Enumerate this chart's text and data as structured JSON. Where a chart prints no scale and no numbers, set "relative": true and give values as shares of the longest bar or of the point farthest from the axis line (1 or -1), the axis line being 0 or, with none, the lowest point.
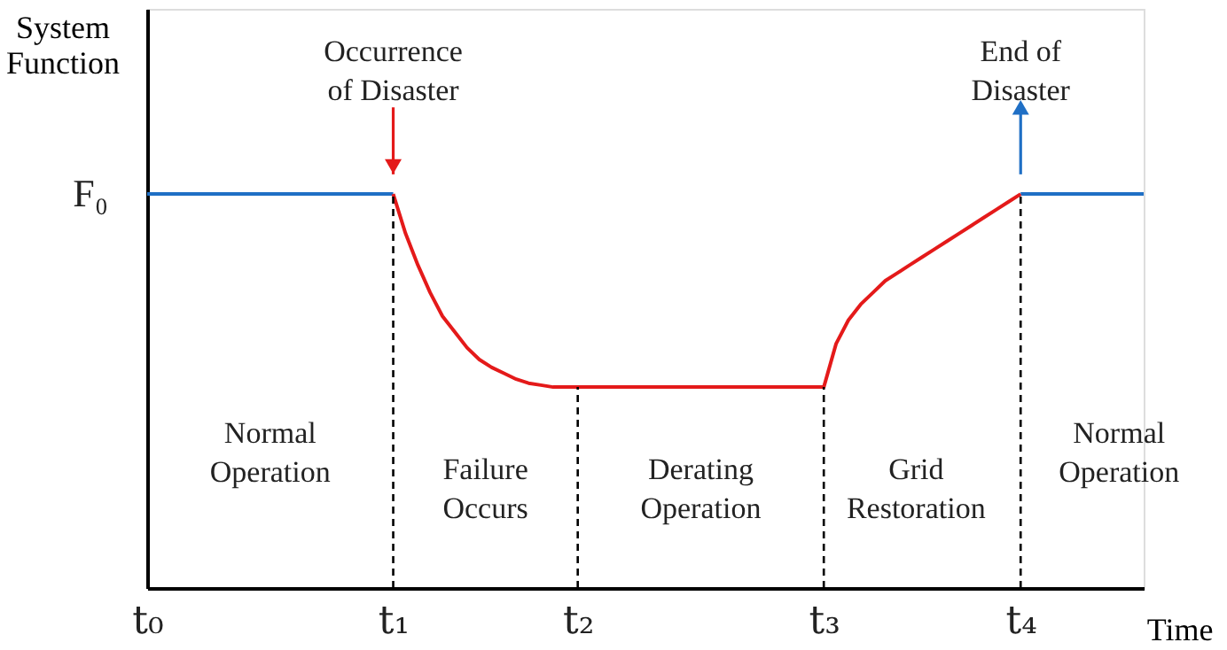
{
  "chart_data": {
    "type": "line",
    "relative": true,
    "xlabel": "Time",
    "ylabel": "System Function",
    "categories": [
      "t₀",
      null,
      null,
      null,
      null,
      null,
      null,
      null,
      null,
      null,
      null,
      null,
      null,
      null,
      null,
      null,
      null,
      null,
      null,
      null,
      "t₁",
      null,
      null,
      null,
      null,
      null,
      null,
      null,
      null,
      null,
      null,
      null,
      null,
      null,
      null,
      "t₂",
      null,
      null,
      null,
      null,
      null,
      null,
      null,
      null,
      null,
      null,
      null,
      null,
      null,
      null,
      null,
      null,
      null,
      null,
      null,
      "t₃",
      null,
      null,
      null,
      null,
      null,
      null,
      null,
      null,
      null,
      null,
      null,
      null,
      null,
      null,
      null,
      "t₄",
      null,
      null,
      null,
      null,
      null,
      null,
      null,
      null,
      null,
      null
    ],
    "grid": false,
    "series": [
      {
        "color": "#1f6fc5",
        "values": [
          1,
          1,
          1,
          1,
          1,
          1,
          1,
          1,
          1,
          1,
          1,
          1,
          1,
          1,
          1,
          1,
          1,
          1,
          1,
          1,
          1,
          null,
          null,
          null,
          null,
          null,
          null,
          null,
          null,
          null,
          null,
          null,
          null,
          null,
          null,
          null,
          null,
          null,
          null,
          null,
          null,
          null,
          null,
          null,
          null,
          null,
          null,
          null,
          null,
          null,
          null,
          null,
          null,
          null,
          null,
          null,
          null,
          null,
          null,
          null,
          null,
          null,
          null,
          null,
          null,
          null,
          null,
          null,
          null,
          null,
          null,
          1,
          1,
          1,
          1,
          1,
          1,
          1,
          1,
          1,
          1,
          1
        ]
      },
      {
        "color": "#e41a1a",
        "values": [
          null,
          null,
          null,
          null,
          null,
          null,
          null,
          null,
          null,
          null,
          null,
          null,
          null,
          null,
          null,
          null,
          null,
          null,
          null,
          null,
          1,
          0.9,
          0.82,
          0.75,
          0.69,
          0.65,
          0.61,
          0.58,
          0.56,
          0.545,
          0.53,
          0.52,
          0.515,
          0.51,
          0.51,
          0.51,
          0.51,
          0.51,
          0.51,
          0.51,
          0.51,
          0.51,
          0.51,
          0.51,
          0.51,
          0.51,
          0.51,
          0.51,
          0.51,
          0.51,
          0.51,
          0.51,
          0.51,
          0.51,
          0.51,
          0.51,
          0.62,
          0.68,
          0.72,
          0.75,
          0.78,
          0.8,
          0.82,
          0.84,
          0.86,
          0.88,
          0.9,
          0.92,
          0.94,
          0.96,
          0.98,
          1,
          null,
          null,
          null,
          null,
          null,
          null,
          null,
          null,
          null,
          null
        ]
      }
    ],
    "ref_lines": [
      {
        "axis": "x",
        "value": "t₁",
        "color": "#000000",
        "line_style": "dashed"
      },
      {
        "axis": "x",
        "value": "t₂",
        "color": "#000000",
        "line_style": "dashed"
      },
      {
        "axis": "x",
        "value": "t₃",
        "color": "#000000",
        "line_style": "dashed"
      },
      {
        "axis": "x",
        "value": "t₄",
        "color": "#000000",
        "line_style": "dashed"
      }
    ],
    "annotations": [
      "F₀",
      "Occurrence of Disaster",
      "End of Disaster",
      "Normal Operation",
      "Failure Occurs",
      "Derating Operation",
      "Grid Restoration",
      "Normal Operation"
    ]
  }
}
